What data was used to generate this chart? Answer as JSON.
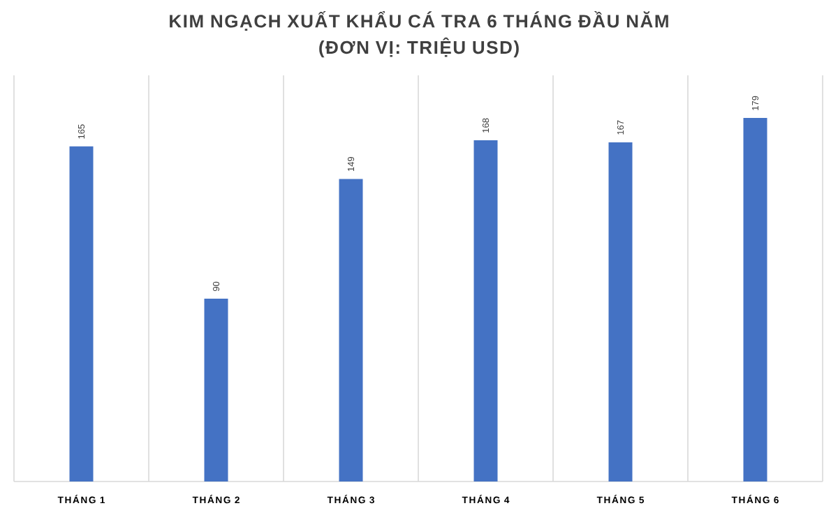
{
  "chart_data": {
    "type": "bar",
    "title": "KIM NGẠCH XUẤT KHẨU CÁ TRA 6 THÁNG ĐẦU NĂM",
    "subtitle": "(ĐƠN VỊ: TRIỆU USD)",
    "categories": [
      "THÁNG 1",
      "THÁNG 2",
      "THÁNG 3",
      "THÁNG 4",
      "THÁNG 5",
      "THÁNG 6"
    ],
    "values": [
      165,
      90,
      149,
      168,
      167,
      179
    ],
    "color": "#4472c4",
    "ylim": [
      0,
      200
    ],
    "data_labels": true,
    "grid": "x",
    "tick_labels": "x"
  }
}
